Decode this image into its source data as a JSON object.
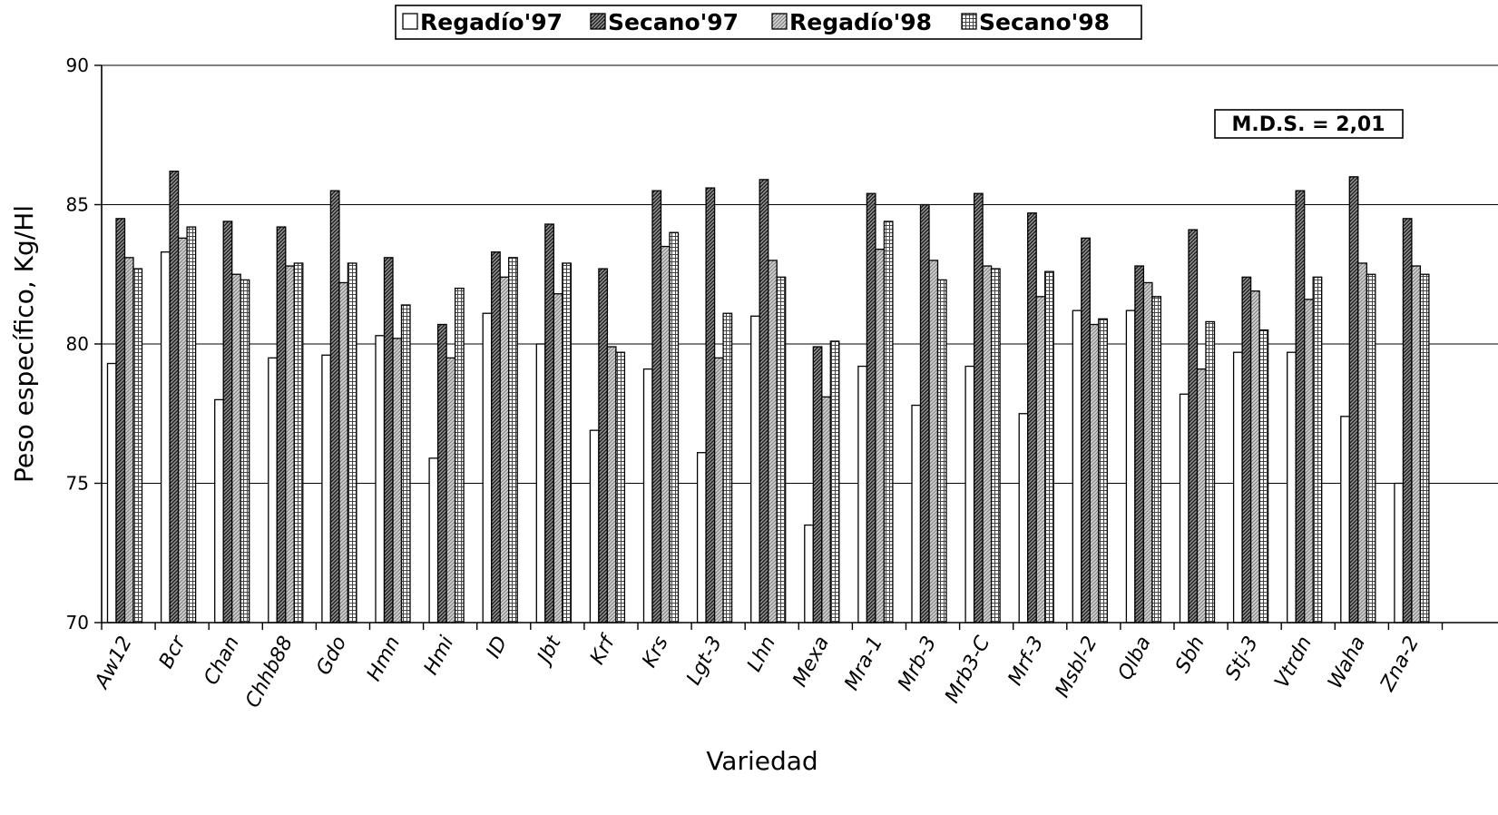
{
  "chart_data": {
    "type": "bar",
    "title": "",
    "xlabel": "Variedad",
    "ylabel": "Peso específico, Kg/Hl",
    "ylim": [
      70,
      90
    ],
    "yticks": [
      70,
      75,
      80,
      85,
      90
    ],
    "grid": true,
    "legend_position": "top-center",
    "annotation": "M.D.S. = 2,01",
    "categories": [
      "Aw12",
      "Bcr",
      "Chan",
      "Chhb88",
      "Gdo",
      "Hmn",
      "Hmi",
      "ID",
      "Jbt",
      "Krf",
      "Krs",
      "Lgt-3",
      "Lhn",
      "Mexa",
      "Mra-1",
      "Mrb-3",
      "Mrb3-C",
      "Mrf-3",
      "Msbl-2",
      "Qlba",
      "Sbh",
      "Stj-3",
      "Vtrdn",
      "Waha",
      "Zna-2"
    ],
    "series": [
      {
        "name": "Regadío'97",
        "pattern": "white",
        "values": [
          79.3,
          83.3,
          78.0,
          79.5,
          79.6,
          80.3,
          75.9,
          81.1,
          80.0,
          76.9,
          79.1,
          76.1,
          81.0,
          73.5,
          79.2,
          77.8,
          79.2,
          77.5,
          81.2,
          81.2,
          78.2,
          79.7,
          79.7,
          77.4,
          75.0
        ]
      },
      {
        "name": "Secano'97",
        "pattern": "dark-hatch",
        "values": [
          84.5,
          86.2,
          84.4,
          84.2,
          85.5,
          83.1,
          80.7,
          83.3,
          84.3,
          82.7,
          85.5,
          85.6,
          85.9,
          79.9,
          85.4,
          85.0,
          85.4,
          84.7,
          83.8,
          82.8,
          84.1,
          82.4,
          85.5,
          86.0,
          84.5
        ]
      },
      {
        "name": "Regadío'98",
        "pattern": "gray-hatch",
        "values": [
          83.1,
          83.8,
          82.5,
          82.8,
          82.2,
          80.2,
          79.5,
          82.4,
          81.8,
          79.9,
          83.5,
          79.5,
          83.0,
          78.1,
          83.4,
          83.0,
          82.8,
          81.7,
          80.7,
          82.2,
          79.1,
          81.9,
          81.6,
          82.9,
          82.8
        ]
      },
      {
        "name": "Secano'98",
        "pattern": "crosshatch",
        "values": [
          82.7,
          84.2,
          82.3,
          82.9,
          82.9,
          81.4,
          82.0,
          83.1,
          82.9,
          79.7,
          84.0,
          81.1,
          82.4,
          80.1,
          84.4,
          82.3,
          82.7,
          82.6,
          80.9,
          81.7,
          80.8,
          80.5,
          82.4,
          82.5,
          82.5
        ]
      }
    ]
  }
}
